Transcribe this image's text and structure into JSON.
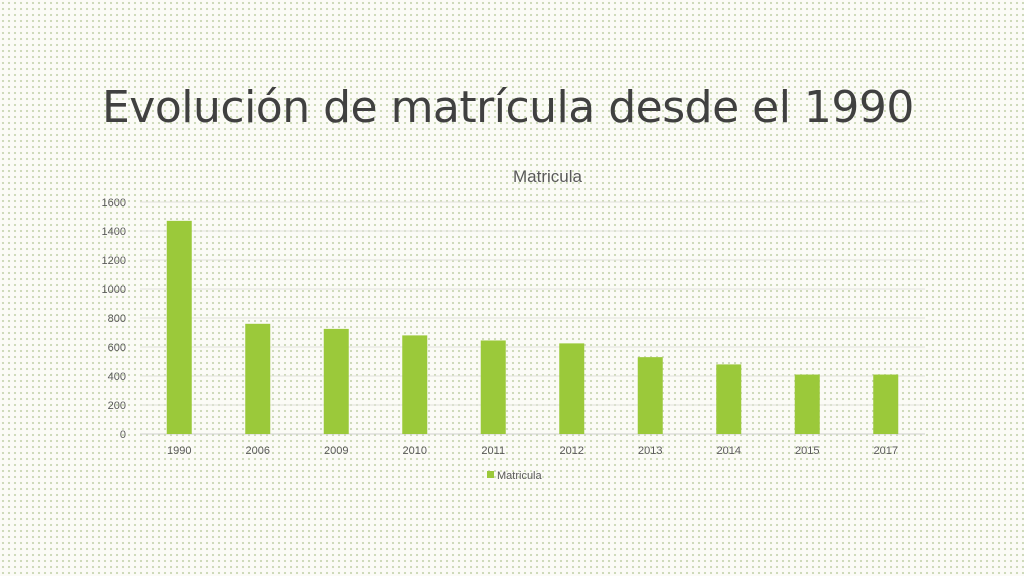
{
  "slide": {
    "title": "Evolución de matrícula desde el 1990"
  },
  "chart_data": {
    "type": "bar",
    "title": "Matricula",
    "categories": [
      "1990",
      "2006",
      "2009",
      "2010",
      "2011",
      "2012",
      "2013",
      "2014",
      "2015",
      "2017"
    ],
    "series": [
      {
        "name": "Matricula",
        "values": [
          1470,
          760,
          725,
          680,
          645,
          625,
          530,
          480,
          410,
          410
        ],
        "color": "#9bc93a"
      }
    ],
    "xlabel": "",
    "ylabel": "",
    "ylim": [
      0,
      1600
    ],
    "yticks": [
      0,
      200,
      400,
      600,
      800,
      1000,
      1200,
      1400,
      1600
    ],
    "grid": true,
    "legend": "bottom-center"
  }
}
